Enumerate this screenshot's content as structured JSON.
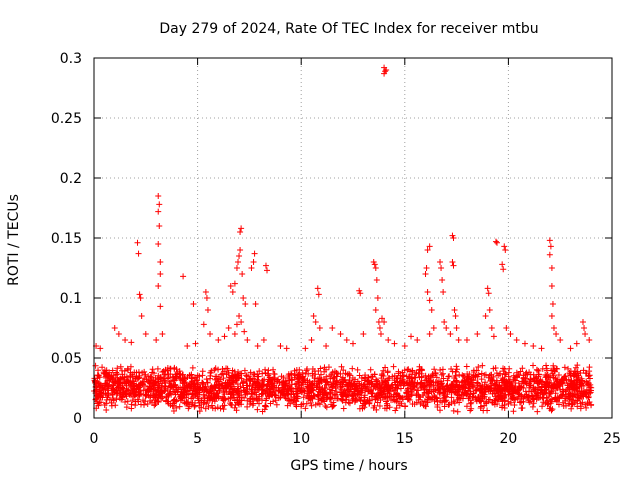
{
  "chart_data": {
    "type": "scatter",
    "title": "Day 279 of 2024, Rate Of TEC Index for receiver mtbu",
    "xlabel": "GPS time / hours",
    "ylabel": "ROTI / TECUs",
    "xlim": [
      0,
      25
    ],
    "ylim": [
      0,
      0.3
    ],
    "xticks": [
      0,
      5,
      10,
      15,
      20,
      25
    ],
    "xtick_labels": [
      "0",
      "5",
      "10",
      "15",
      "20",
      "25"
    ],
    "yticks": [
      0,
      0.05,
      0.1,
      0.15,
      0.2,
      0.25,
      0.3
    ],
    "ytick_labels": [
      "0",
      "0.05",
      "0.1",
      "0.15",
      "0.2",
      "0.25",
      "0.3"
    ],
    "grid": true,
    "marker": "+",
    "marker_color": "#ff0000",
    "series": [
      {
        "name": "ROTI",
        "baseline": {
          "x_start": 0,
          "x_end": 24,
          "y_min": 0.005,
          "y_max": 0.045,
          "density_per_hour": 110
        },
        "outliers": [
          [
            0.1,
            0.06
          ],
          [
            0.3,
            0.058
          ],
          [
            1.0,
            0.075
          ],
          [
            1.2,
            0.07
          ],
          [
            1.5,
            0.065
          ],
          [
            1.8,
            0.063
          ],
          [
            2.1,
            0.146
          ],
          [
            2.15,
            0.137
          ],
          [
            2.2,
            0.103
          ],
          [
            2.25,
            0.1
          ],
          [
            2.3,
            0.085
          ],
          [
            2.5,
            0.07
          ],
          [
            3.1,
            0.185
          ],
          [
            3.15,
            0.178
          ],
          [
            3.1,
            0.172
          ],
          [
            3.15,
            0.16
          ],
          [
            3.1,
            0.145
          ],
          [
            3.2,
            0.13
          ],
          [
            3.2,
            0.12
          ],
          [
            3.1,
            0.11
          ],
          [
            3.2,
            0.093
          ],
          [
            3.3,
            0.07
          ],
          [
            3.0,
            0.065
          ],
          [
            4.3,
            0.118
          ],
          [
            4.8,
            0.095
          ],
          [
            4.5,
            0.06
          ],
          [
            4.9,
            0.062
          ],
          [
            5.4,
            0.105
          ],
          [
            5.45,
            0.1
          ],
          [
            5.5,
            0.09
          ],
          [
            5.3,
            0.078
          ],
          [
            5.6,
            0.07
          ],
          [
            6.0,
            0.065
          ],
          [
            6.3,
            0.068
          ],
          [
            6.5,
            0.075
          ],
          [
            6.6,
            0.11
          ],
          [
            6.7,
            0.105
          ],
          [
            6.8,
            0.112
          ],
          [
            6.9,
            0.125
          ],
          [
            6.95,
            0.13
          ],
          [
            7.0,
            0.135
          ],
          [
            7.05,
            0.14
          ],
          [
            7.1,
            0.158
          ],
          [
            7.05,
            0.155
          ],
          [
            7.15,
            0.12
          ],
          [
            7.2,
            0.1
          ],
          [
            7.3,
            0.095
          ],
          [
            7.0,
            0.085
          ],
          [
            7.1,
            0.08
          ],
          [
            6.9,
            0.078
          ],
          [
            6.8,
            0.07
          ],
          [
            7.25,
            0.072
          ],
          [
            7.4,
            0.065
          ],
          [
            7.6,
            0.125
          ],
          [
            7.7,
            0.13
          ],
          [
            7.75,
            0.137
          ],
          [
            7.8,
            0.095
          ],
          [
            7.9,
            0.06
          ],
          [
            8.3,
            0.127
          ],
          [
            8.35,
            0.123
          ],
          [
            8.2,
            0.065
          ],
          [
            9.0,
            0.06
          ],
          [
            9.3,
            0.058
          ],
          [
            10.2,
            0.058
          ],
          [
            10.5,
            0.065
          ],
          [
            10.6,
            0.085
          ],
          [
            10.7,
            0.08
          ],
          [
            10.8,
            0.108
          ],
          [
            10.85,
            0.103
          ],
          [
            10.9,
            0.075
          ],
          [
            11.2,
            0.06
          ],
          [
            11.5,
            0.075
          ],
          [
            11.9,
            0.07
          ],
          [
            12.2,
            0.065
          ],
          [
            12.5,
            0.062
          ],
          [
            12.8,
            0.106
          ],
          [
            12.85,
            0.104
          ],
          [
            13.0,
            0.07
          ],
          [
            13.5,
            0.13
          ],
          [
            13.55,
            0.128
          ],
          [
            13.6,
            0.125
          ],
          [
            13.65,
            0.115
          ],
          [
            13.7,
            0.1
          ],
          [
            13.6,
            0.09
          ],
          [
            13.75,
            0.08
          ],
          [
            13.8,
            0.075
          ],
          [
            13.9,
            0.083
          ],
          [
            14.0,
            0.08
          ],
          [
            13.85,
            0.07
          ],
          [
            14.0,
            0.292
          ],
          [
            14.05,
            0.289
          ],
          [
            14.1,
            0.29
          ],
          [
            14.0,
            0.287
          ],
          [
            14.2,
            0.065
          ],
          [
            14.5,
            0.062
          ],
          [
            15.0,
            0.06
          ],
          [
            15.3,
            0.068
          ],
          [
            15.6,
            0.065
          ],
          [
            16.0,
            0.12
          ],
          [
            16.05,
            0.125
          ],
          [
            16.1,
            0.14
          ],
          [
            16.2,
            0.143
          ],
          [
            16.1,
            0.105
          ],
          [
            16.2,
            0.098
          ],
          [
            16.3,
            0.09
          ],
          [
            16.4,
            0.075
          ],
          [
            16.2,
            0.07
          ],
          [
            16.7,
            0.13
          ],
          [
            16.75,
            0.125
          ],
          [
            16.8,
            0.115
          ],
          [
            16.85,
            0.105
          ],
          [
            16.9,
            0.08
          ],
          [
            17.0,
            0.075
          ],
          [
            17.3,
            0.152
          ],
          [
            17.35,
            0.15
          ],
          [
            17.3,
            0.13
          ],
          [
            17.35,
            0.127
          ],
          [
            17.4,
            0.09
          ],
          [
            17.45,
            0.085
          ],
          [
            17.5,
            0.075
          ],
          [
            17.2,
            0.07
          ],
          [
            17.6,
            0.065
          ],
          [
            18.0,
            0.065
          ],
          [
            18.5,
            0.07
          ],
          [
            18.9,
            0.085
          ],
          [
            19.0,
            0.108
          ],
          [
            19.05,
            0.104
          ],
          [
            19.1,
            0.09
          ],
          [
            19.2,
            0.075
          ],
          [
            19.3,
            0.068
          ],
          [
            19.4,
            0.147
          ],
          [
            19.45,
            0.146
          ],
          [
            19.8,
            0.143
          ],
          [
            19.85,
            0.14
          ],
          [
            19.7,
            0.128
          ],
          [
            19.75,
            0.124
          ],
          [
            19.9,
            0.075
          ],
          [
            20.1,
            0.07
          ],
          [
            20.4,
            0.065
          ],
          [
            20.8,
            0.062
          ],
          [
            21.2,
            0.06
          ],
          [
            21.6,
            0.058
          ],
          [
            22.0,
            0.148
          ],
          [
            22.05,
            0.143
          ],
          [
            22.0,
            0.136
          ],
          [
            22.1,
            0.125
          ],
          [
            22.1,
            0.11
          ],
          [
            22.15,
            0.095
          ],
          [
            22.1,
            0.085
          ],
          [
            22.2,
            0.075
          ],
          [
            22.3,
            0.07
          ],
          [
            22.5,
            0.065
          ],
          [
            23.0,
            0.058
          ],
          [
            23.3,
            0.062
          ],
          [
            23.6,
            0.08
          ],
          [
            23.65,
            0.075
          ],
          [
            23.7,
            0.07
          ],
          [
            23.9,
            0.065
          ]
        ]
      }
    ]
  }
}
